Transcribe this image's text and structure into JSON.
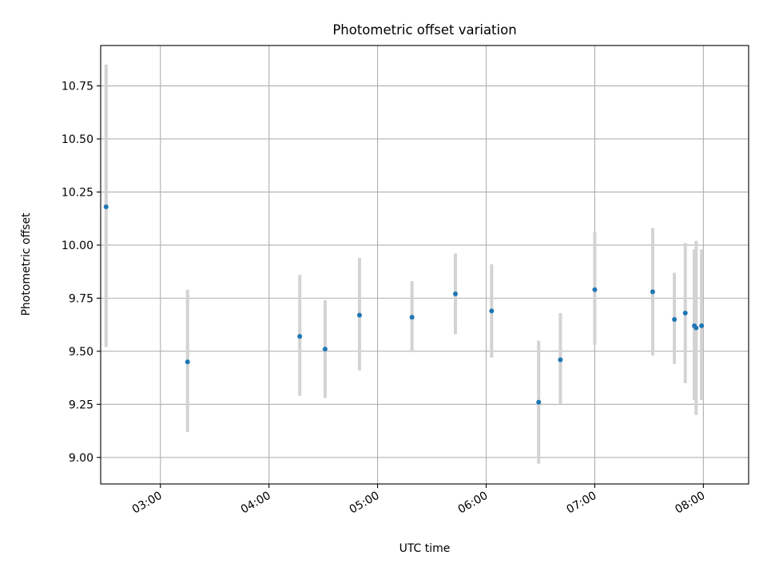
{
  "chart_data": {
    "type": "scatter",
    "title": "Photometric offset variation",
    "xlabel": "UTC time",
    "ylabel": "Photometric offset",
    "x_axis_type": "time",
    "xlim": [
      "02:27",
      "08:25"
    ],
    "ylim": [
      8.875,
      10.94
    ],
    "x_ticks": [
      "03:00",
      "04:00",
      "05:00",
      "06:00",
      "07:00",
      "08:00"
    ],
    "y_ticks": [
      "9.00",
      "9.25",
      "9.50",
      "9.75",
      "10.00",
      "10.25",
      "10.50",
      "10.75"
    ],
    "grid": true,
    "point_color": "#1f77b4",
    "error_bar_color": "#d3d3d3",
    "points": [
      {
        "x": "02:30",
        "y": 10.18,
        "ylow": 9.52,
        "yhigh": 10.85
      },
      {
        "x": "03:15",
        "y": 9.45,
        "ylow": 9.12,
        "yhigh": 9.79
      },
      {
        "x": "04:17",
        "y": 9.57,
        "ylow": 9.29,
        "yhigh": 9.86
      },
      {
        "x": "04:31",
        "y": 9.51,
        "ylow": 9.28,
        "yhigh": 9.74
      },
      {
        "x": "04:50",
        "y": 9.67,
        "ylow": 9.41,
        "yhigh": 9.94
      },
      {
        "x": "05:19",
        "y": 9.66,
        "ylow": 9.5,
        "yhigh": 9.83
      },
      {
        "x": "05:43",
        "y": 9.77,
        "ylow": 9.58,
        "yhigh": 9.96
      },
      {
        "x": "06:03",
        "y": 9.69,
        "ylow": 9.47,
        "yhigh": 9.91
      },
      {
        "x": "06:29",
        "y": 9.26,
        "ylow": 8.97,
        "yhigh": 9.55
      },
      {
        "x": "06:41",
        "y": 9.46,
        "ylow": 9.25,
        "yhigh": 9.68
      },
      {
        "x": "07:00",
        "y": 9.79,
        "ylow": 9.53,
        "yhigh": 10.06
      },
      {
        "x": "07:32",
        "y": 9.78,
        "ylow": 9.48,
        "yhigh": 10.08
      },
      {
        "x": "07:44",
        "y": 9.65,
        "ylow": 9.44,
        "yhigh": 9.87
      },
      {
        "x": "07:50",
        "y": 9.68,
        "ylow": 9.35,
        "yhigh": 10.01
      },
      {
        "x": "07:55",
        "y": 9.62,
        "ylow": 9.27,
        "yhigh": 9.98
      },
      {
        "x": "07:56",
        "y": 9.61,
        "ylow": 9.2,
        "yhigh": 10.02
      },
      {
        "x": "07:59",
        "y": 9.62,
        "ylow": 9.27,
        "yhigh": 9.98
      }
    ]
  }
}
